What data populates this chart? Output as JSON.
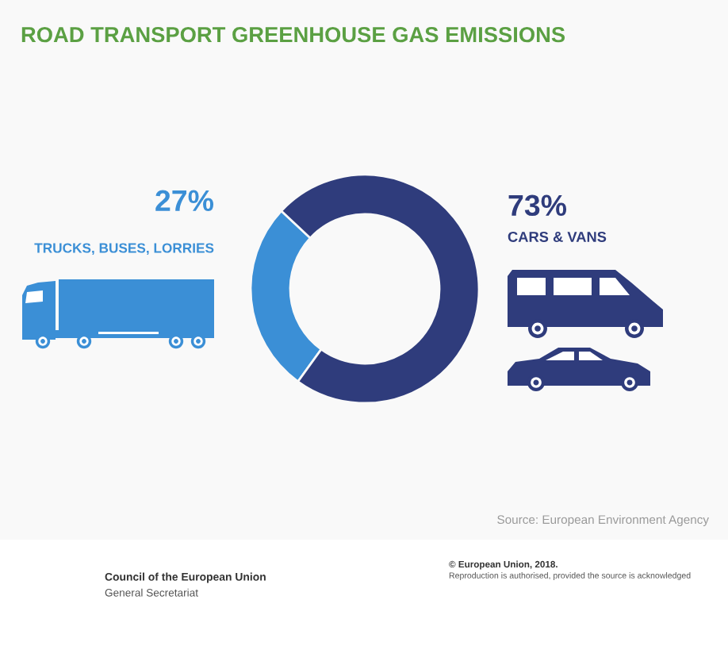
{
  "chart_data": {
    "type": "donut",
    "title": "ROAD TRANSPORT GREENHOUSE GAS EMISSIONS",
    "categories": [
      "TRUCKS, BUSES, LORRIES",
      "CARS & VANS"
    ],
    "values": [
      27,
      73
    ],
    "colors": [
      "#3b8fd6",
      "#2f3c7c"
    ],
    "value_labels": [
      "27%",
      "73%"
    ],
    "annotations": [
      "Source: European Environment Agency",
      "Council of the European Union",
      "General Secretariat",
      "© European Union, 2018.",
      "Reproduction is authorised, provided the source is acknowledged"
    ]
  }
}
